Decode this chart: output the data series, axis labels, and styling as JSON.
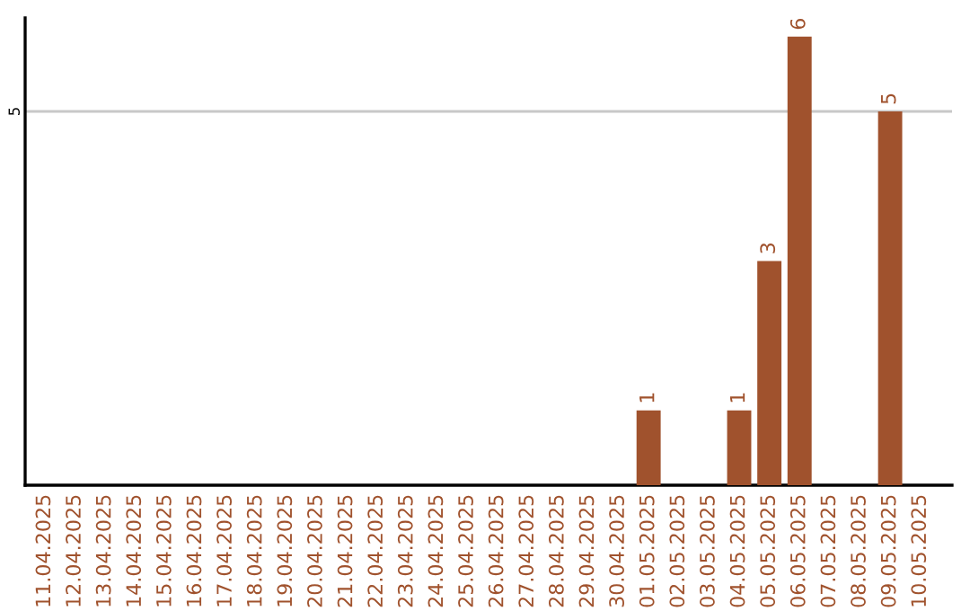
{
  "chart_data": {
    "type": "bar",
    "categories": [
      "11.04.2025",
      "12.04.2025",
      "13.04.2025",
      "14.04.2025",
      "15.04.2025",
      "16.04.2025",
      "17.04.2025",
      "18.04.2025",
      "19.04.2025",
      "20.04.2025",
      "21.04.2025",
      "22.04.2025",
      "23.04.2025",
      "24.04.2025",
      "25.04.2025",
      "26.04.2025",
      "27.04.2025",
      "28.04.2025",
      "29.04.2025",
      "30.04.2025",
      "01.05.2025",
      "02.05.2025",
      "03.05.2025",
      "04.05.2025",
      "05.05.2025",
      "06.05.2025",
      "07.05.2025",
      "08.05.2025",
      "09.05.2025",
      "10.05.2025"
    ],
    "values": [
      null,
      null,
      null,
      null,
      null,
      null,
      null,
      null,
      null,
      null,
      null,
      null,
      null,
      null,
      null,
      null,
      null,
      null,
      null,
      null,
      1,
      null,
      null,
      1,
      3,
      6,
      null,
      null,
      5,
      null
    ],
    "color": "#a0522d",
    "ylim": [
      0,
      6.25
    ],
    "yticks": [
      5
    ],
    "grid": "y",
    "data_labels": true,
    "legend": false
  }
}
